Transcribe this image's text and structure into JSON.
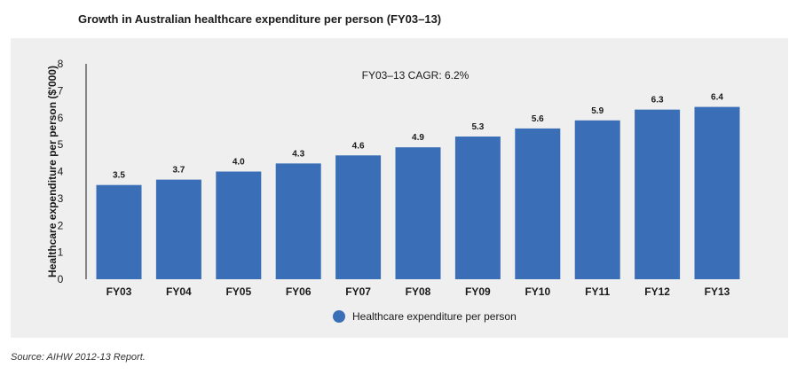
{
  "chart_data": {
    "type": "bar",
    "title": "Growth in Australian healthcare expenditure per person (FY03–13)",
    "categories": [
      "FY03",
      "FY04",
      "FY05",
      "FY06",
      "FY07",
      "FY08",
      "FY09",
      "FY10",
      "FY11",
      "FY12",
      "FY13"
    ],
    "series": [
      {
        "name": "Healthcare expenditure per person",
        "values": [
          3.5,
          3.7,
          4.0,
          4.3,
          4.6,
          4.9,
          5.3,
          5.6,
          5.9,
          6.3,
          6.4
        ],
        "value_labels": [
          "3.5",
          "3.7",
          "4.0",
          "4.3",
          "4.6",
          "4.9",
          "5.3",
          "5.6",
          "5.9",
          "6.3",
          "6.4"
        ],
        "color": "#3a6fb7"
      }
    ],
    "xlabel": "",
    "ylabel": "Healthcare expenditure per person ($'000)",
    "ylim": [
      0,
      8
    ],
    "yticks": [
      0,
      1,
      2,
      3,
      4,
      5,
      6,
      7,
      8
    ],
    "annotation": "FY03–13 CAGR: 6.2%",
    "grid": false,
    "legend_position": "bottom-center",
    "background": "#efefef"
  },
  "source": "Source:  AIHW 2012-13 Report."
}
